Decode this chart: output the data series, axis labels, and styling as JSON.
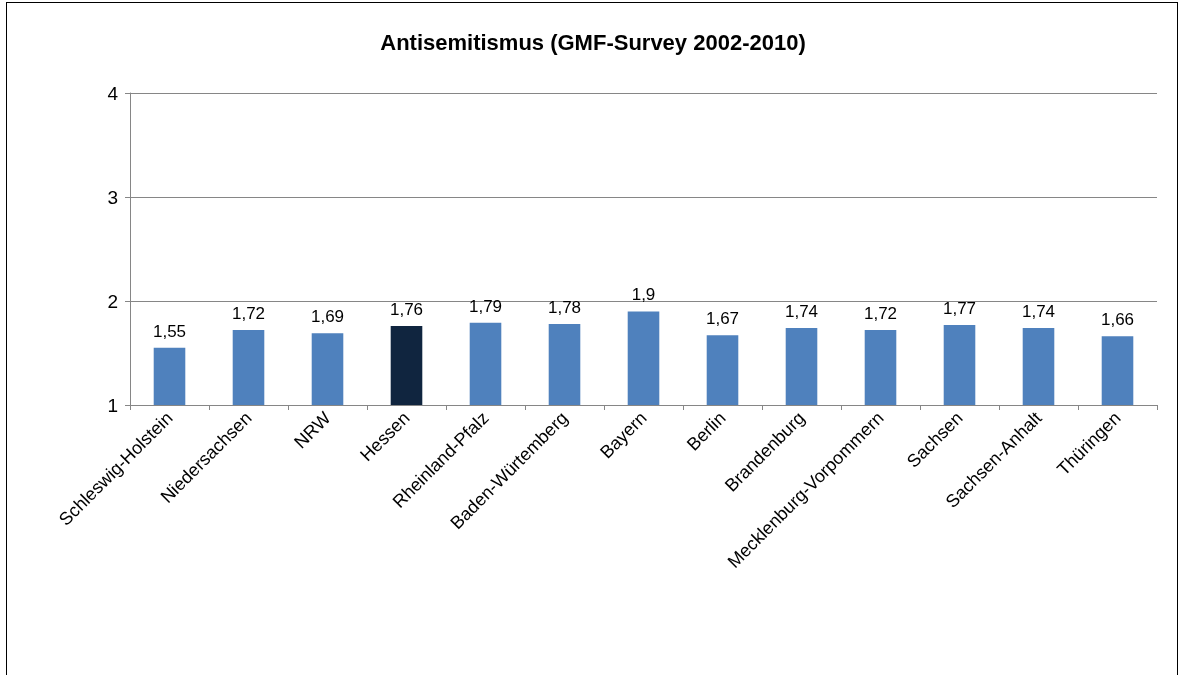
{
  "chart_data": {
    "type": "bar",
    "title": "Antisemitismus (GMF-Survey 2002-2010)",
    "categories": [
      "Schleswig-Holstein",
      "Niedersachsen",
      "NRW",
      "Hessen",
      "Rheinland-Pfalz",
      "Baden-Würtemberg",
      "Bayern",
      "Berlin",
      "Brandenburg",
      "Mecklenburg-Vorpommern",
      "Sachsen",
      "Sachsen-Anhalt",
      "Thüringen"
    ],
    "values": [
      1.55,
      1.72,
      1.69,
      1.76,
      1.79,
      1.78,
      1.9,
      1.67,
      1.74,
      1.72,
      1.77,
      1.74,
      1.66
    ],
    "value_labels": [
      "1,55",
      "1,72",
      "1,69",
      "1,76",
      "1,79",
      "1,78",
      "1,9",
      "1,67",
      "1,74",
      "1,72",
      "1,77",
      "1,74",
      "1,66"
    ],
    "colors": [
      "#4f81bd",
      "#4f81bd",
      "#4f81bd",
      "#10253f",
      "#4f81bd",
      "#4f81bd",
      "#4f81bd",
      "#4f81bd",
      "#4f81bd",
      "#4f81bd",
      "#4f81bd",
      "#4f81bd",
      "#4f81bd"
    ],
    "ylim": [
      1,
      4
    ],
    "yticks": [
      1,
      2,
      3,
      4
    ],
    "grid": "y"
  }
}
